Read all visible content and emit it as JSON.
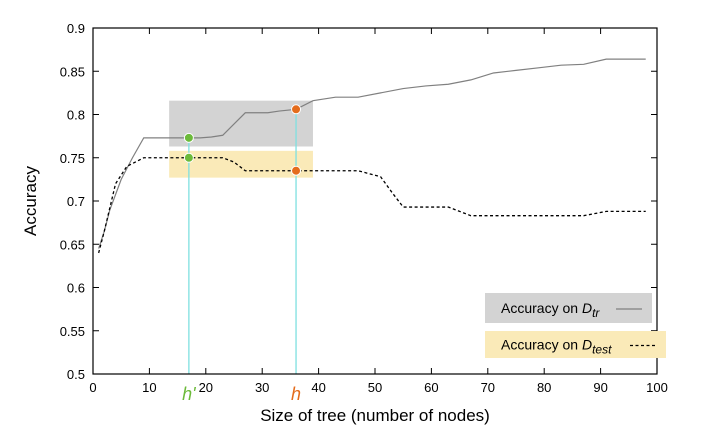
{
  "chart_data": {
    "type": "line",
    "xlabel": "Size of tree (number of nodes)",
    "ylabel": "Accuracy",
    "xlim": [
      0,
      100
    ],
    "ylim": [
      0.5,
      0.9
    ],
    "xticks": [
      {
        "value": 0,
        "label": "0"
      },
      {
        "value": 10,
        "label": "10"
      },
      {
        "value": 20,
        "label": "20"
      },
      {
        "value": 30,
        "label": "30"
      },
      {
        "value": 40,
        "label": "40"
      },
      {
        "value": 50,
        "label": "50"
      },
      {
        "value": 60,
        "label": "60"
      },
      {
        "value": 70,
        "label": "70"
      },
      {
        "value": 80,
        "label": "80"
      },
      {
        "value": 90,
        "label": "90"
      },
      {
        "value": 100,
        "label": "100"
      }
    ],
    "yticks": [
      {
        "value": 0.5,
        "label": "0.5"
      },
      {
        "value": 0.55,
        "label": "0.55"
      },
      {
        "value": 0.6,
        "label": "0.6"
      },
      {
        "value": 0.65,
        "label": "0.65"
      },
      {
        "value": 0.7,
        "label": "0.7"
      },
      {
        "value": 0.75,
        "label": "0.75"
      },
      {
        "value": 0.8,
        "label": "0.8"
      },
      {
        "value": 0.85,
        "label": "0.85"
      },
      {
        "value": 0.9,
        "label": "0.9"
      }
    ],
    "legend_position": "bottom-right",
    "grid": false,
    "series": [
      {
        "legend_prefix": "Accuracy on ",
        "legend_symbol": "D",
        "legend_subscript": "tr",
        "style": "solid",
        "color": "#808080",
        "highlight_color": "#d3d3d3",
        "x": [
          1,
          2,
          3,
          5,
          7,
          9,
          11,
          15,
          17,
          19,
          21,
          23,
          27,
          31,
          33,
          36,
          39,
          43,
          47,
          51,
          55,
          59,
          63,
          67,
          71,
          75,
          79,
          83,
          87,
          91,
          95,
          98
        ],
        "y": [
          0.645,
          0.665,
          0.69,
          0.725,
          0.75,
          0.773,
          0.773,
          0.773,
          0.773,
          0.773,
          0.774,
          0.776,
          0.802,
          0.802,
          0.804,
          0.806,
          0.816,
          0.82,
          0.82,
          0.825,
          0.83,
          0.833,
          0.835,
          0.84,
          0.848,
          0.851,
          0.854,
          0.857,
          0.858,
          0.864,
          0.864,
          0.864
        ]
      },
      {
        "legend_prefix": "Accuracy on ",
        "legend_symbol": "D",
        "legend_subscript": "test",
        "style": "dashed",
        "color": "#000000",
        "highlight_color": "#faeab8",
        "x": [
          1,
          2,
          4,
          6,
          9,
          11,
          15,
          19,
          23,
          25,
          27,
          31,
          35,
          39,
          43,
          47,
          51,
          53,
          55,
          59,
          63,
          67,
          71,
          75,
          79,
          83,
          87,
          91,
          95,
          98
        ],
        "y": [
          0.64,
          0.665,
          0.72,
          0.74,
          0.75,
          0.75,
          0.75,
          0.75,
          0.75,
          0.745,
          0.735,
          0.735,
          0.735,
          0.735,
          0.735,
          0.735,
          0.728,
          0.71,
          0.693,
          0.693,
          0.693,
          0.683,
          0.683,
          0.683,
          0.683,
          0.683,
          0.683,
          0.688,
          0.688,
          0.688
        ]
      }
    ],
    "markers": [
      {
        "label": "h'",
        "x": 17,
        "train_y": 0.773,
        "test_y": 0.75,
        "color": "#6cba3a"
      },
      {
        "label": "h",
        "x": 36,
        "train_y": 0.806,
        "test_y": 0.735,
        "color": "#e46c1c"
      }
    ],
    "highlight_boxes": [
      {
        "series": 0,
        "x_range": [
          13.5,
          39
        ],
        "y_range": [
          0.763,
          0.816
        ]
      },
      {
        "series": 1,
        "x_range": [
          13.5,
          39
        ],
        "y_range": [
          0.727,
          0.758
        ]
      }
    ],
    "guide_line_color": "#7fe0e0"
  }
}
